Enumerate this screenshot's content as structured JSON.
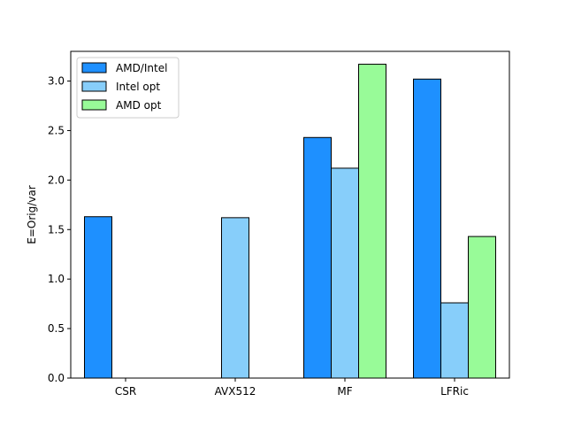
{
  "chart_data": {
    "type": "bar",
    "categories": [
      "CSR",
      "AVX512",
      "MF",
      "LFRic"
    ],
    "series": [
      {
        "name": "AMD/Intel",
        "color": "#1e90ff",
        "values": [
          1.63,
          0,
          2.43,
          3.02
        ]
      },
      {
        "name": "Intel opt",
        "color": "#87cefa",
        "values": [
          0,
          1.62,
          2.12,
          0.76
        ]
      },
      {
        "name": "AMD opt",
        "color": "#98fb98",
        "values": [
          0,
          0,
          3.17,
          1.43
        ]
      }
    ],
    "ylabel": "E=Orig/var",
    "ylim": [
      0,
      3.3
    ],
    "yticks": [
      "0.0",
      "0.5",
      "1.0",
      "1.5",
      "2.0",
      "2.5",
      "3.0"
    ],
    "legend": "top-left",
    "grid": false
  }
}
